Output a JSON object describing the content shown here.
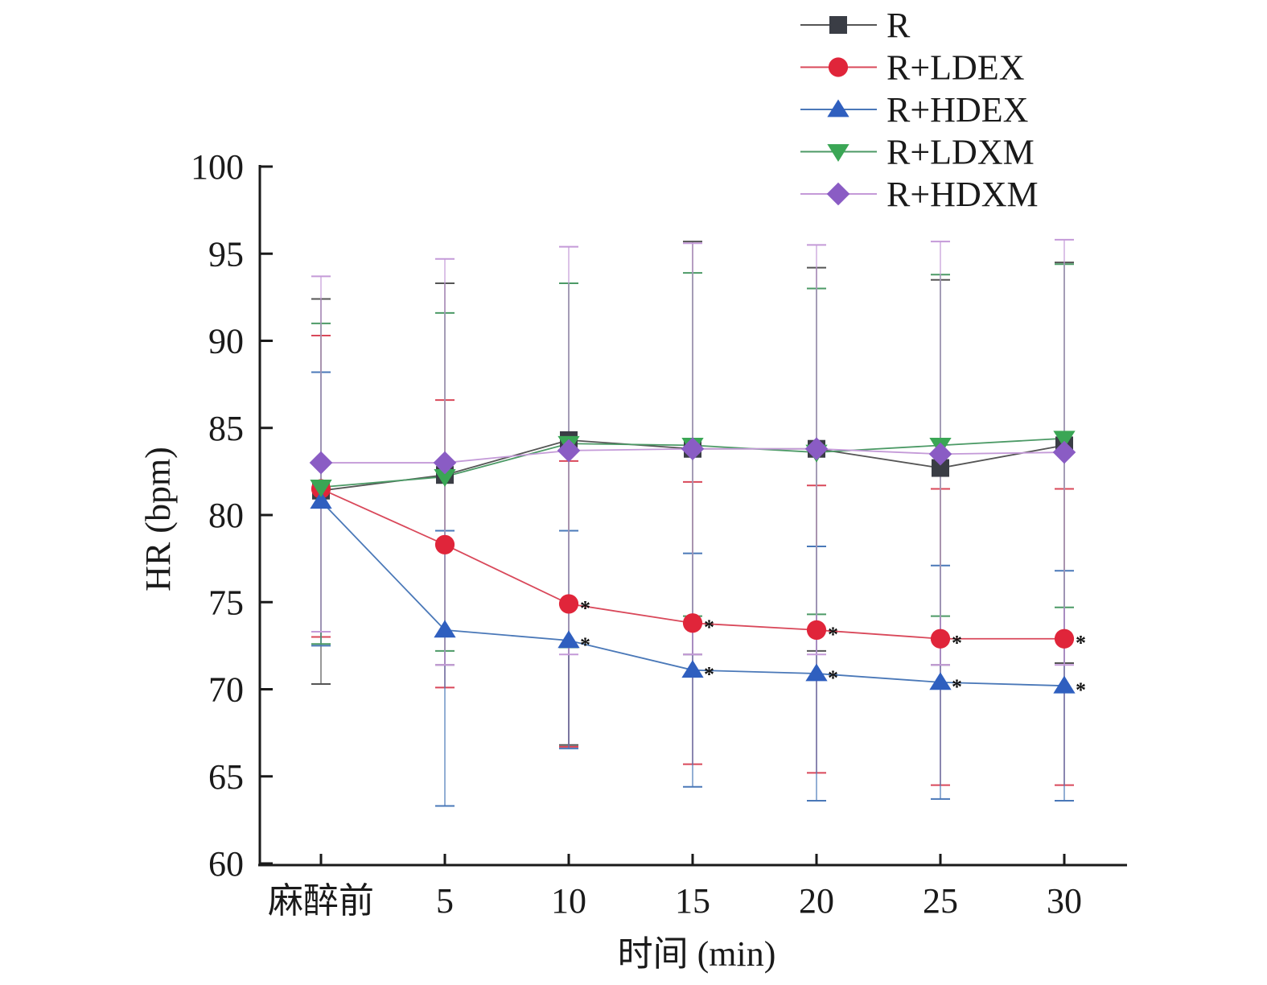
{
  "chart_data": {
    "type": "line",
    "title": "",
    "xlabel": "时间 (min)",
    "ylabel": "HR (bpm)",
    "categories": [
      "麻醉前",
      "5",
      "10",
      "15",
      "20",
      "25",
      "30"
    ],
    "ylim": [
      60,
      100
    ],
    "yticks": [
      60,
      65,
      70,
      75,
      80,
      85,
      90,
      95,
      100
    ],
    "grid": false,
    "legend_position": "top-right",
    "series": [
      {
        "name": "R",
        "marker": "square",
        "color": "#3a3d45",
        "line_color": "#555555",
        "values": [
          81.4,
          82.3,
          84.3,
          83.8,
          83.8,
          82.7,
          84.0
        ],
        "error_upper": [
          92.4,
          93.3,
          93.3,
          95.7,
          94.2,
          93.5,
          94.5
        ],
        "error_lower": [
          70.3,
          71.4,
          66.8,
          72.0,
          72.2,
          71.4,
          71.5
        ],
        "significant": [
          false,
          false,
          false,
          false,
          false,
          false,
          false
        ]
      },
      {
        "name": "R+LDEX",
        "marker": "circle",
        "color": "#e0253a",
        "line_color": "#d9485a",
        "values": [
          81.5,
          78.3,
          74.9,
          73.8,
          73.4,
          72.9,
          72.9
        ],
        "error_upper": [
          90.3,
          86.6,
          83.1,
          81.9,
          81.7,
          81.5,
          81.5
        ],
        "error_lower": [
          73.0,
          70.1,
          66.7,
          65.7,
          65.2,
          64.5,
          64.5
        ],
        "significant": [
          false,
          false,
          true,
          true,
          true,
          true,
          true
        ]
      },
      {
        "name": "R+HDEX",
        "marker": "triangle-up",
        "color": "#2f5fbf",
        "line_color": "#4a78b8",
        "values": [
          80.8,
          73.4,
          72.8,
          71.1,
          70.9,
          70.4,
          70.2
        ],
        "error_upper": [
          88.2,
          79.1,
          79.1,
          77.8,
          78.2,
          77.1,
          76.8
        ],
        "error_lower": [
          72.5,
          63.3,
          66.6,
          64.4,
          63.6,
          63.7,
          63.6
        ],
        "significant": [
          false,
          false,
          true,
          true,
          true,
          true,
          true
        ]
      },
      {
        "name": "R+LDXM",
        "marker": "triangle-down",
        "color": "#3aa655",
        "line_color": "#4c9a66",
        "values": [
          81.6,
          82.2,
          84.1,
          84.0,
          83.6,
          84.0,
          84.4
        ],
        "error_upper": [
          91.0,
          91.6,
          93.3,
          93.9,
          93.0,
          93.8,
          94.4
        ],
        "error_lower": [
          72.6,
          72.2,
          72.4,
          74.2,
          74.3,
          74.2,
          74.7
        ],
        "significant": [
          false,
          false,
          false,
          false,
          false,
          false,
          false
        ]
      },
      {
        "name": "R+HDXM",
        "marker": "diamond",
        "color": "#8a5cc4",
        "line_color": "#c49ad8",
        "values": [
          83.0,
          83.0,
          83.7,
          83.8,
          83.8,
          83.5,
          83.6
        ],
        "error_upper": [
          93.7,
          94.7,
          95.4,
          95.6,
          95.5,
          95.7,
          95.8
        ],
        "error_lower": [
          73.3,
          71.4,
          72.0,
          72.0,
          72.0,
          71.4,
          71.4
        ],
        "significant": [
          false,
          false,
          false,
          false,
          false,
          false,
          false
        ]
      }
    ],
    "significance_symbol": "*"
  }
}
